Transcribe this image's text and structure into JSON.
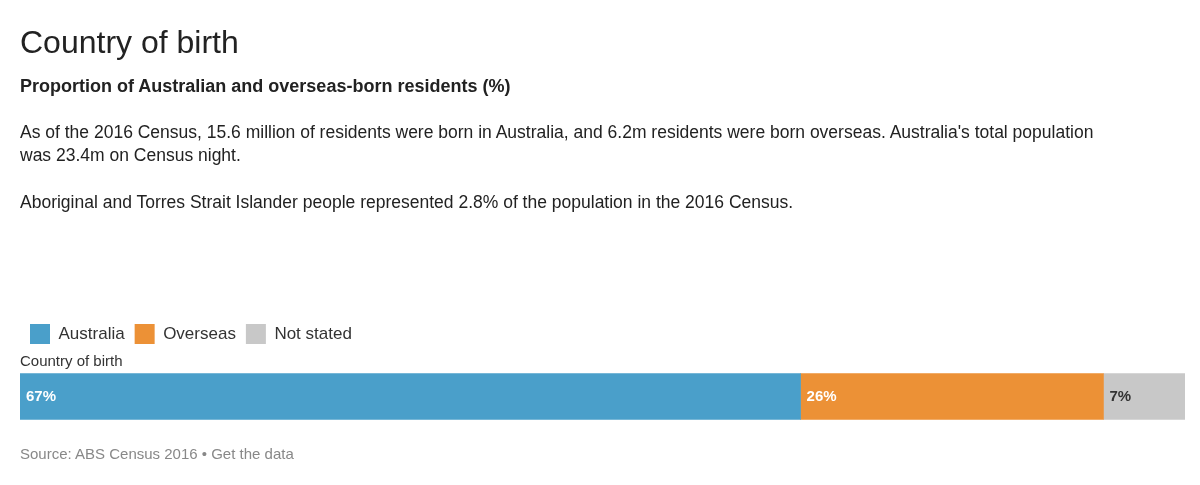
{
  "chart_data": {
    "type": "bar",
    "orientation": "horizontal",
    "stacked": true,
    "title": "Country of birth",
    "subtitle": "Proportion of Australian and overseas-born residents (%)",
    "annotations": [
      "As of the 2016 Census, 15.6 million of residents were born in Australia, and 6.2m residents were born overseas. Australia's total population was 23.4m on Census night.",
      "Aboriginal and Torres Strait Islander people represented 2.8% of the population in the 2016 Census.",
      "Source: ABS Census 2016 • Get the data"
    ],
    "categories": [
      "Country of birth"
    ],
    "series": [
      {
        "name": "Australia",
        "color": "#4a9fca",
        "values": [
          67
        ],
        "value_labels": [
          "67%"
        ]
      },
      {
        "name": "Overseas",
        "color": "#ec9136",
        "values": [
          26
        ],
        "value_labels": [
          "26%"
        ]
      },
      {
        "name": "Not stated",
        "color": "#c8c8c8",
        "values": [
          7
        ],
        "value_labels": [
          "7%"
        ]
      }
    ],
    "legend": "top left"
  }
}
